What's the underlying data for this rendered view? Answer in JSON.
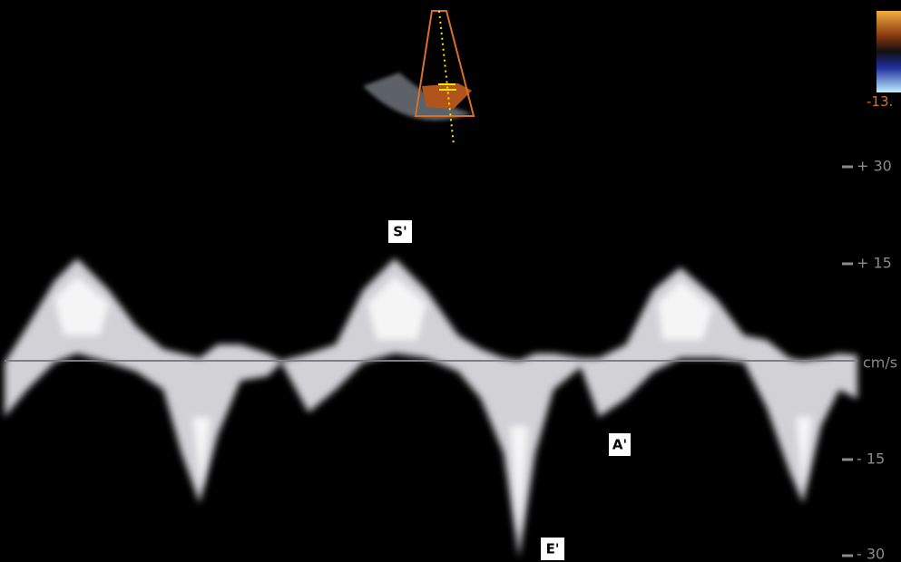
{
  "color_bar": {
    "label": "-13."
  },
  "scale": {
    "labels": [
      "+ 30",
      "+ 15",
      "cm/s",
      "- 15",
      "- 30"
    ]
  },
  "annotations": {
    "s_wave": "S'",
    "a_wave": "A'",
    "e_wave": "E'"
  }
}
